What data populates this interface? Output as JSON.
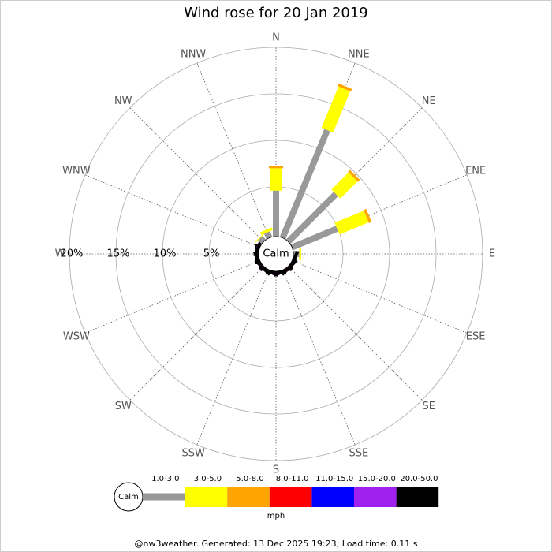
{
  "chart_data": {
    "type": "windrose",
    "title": "Wind rose for 20 Jan 2019",
    "directions": [
      "N",
      "NNE",
      "NE",
      "ENE",
      "E",
      "ESE",
      "SE",
      "SSE",
      "S",
      "SSW",
      "SW",
      "WSW",
      "W",
      "WNW",
      "NW",
      "NNW"
    ],
    "rlim": [
      0,
      20
    ],
    "rticks": [
      {
        "value": 5,
        "label": "5%"
      },
      {
        "value": 10,
        "label": "10%"
      },
      {
        "value": 15,
        "label": "15%"
      },
      {
        "value": 20,
        "label": "20%"
      }
    ],
    "calm_label": "Calm",
    "unit": "mph",
    "series": [
      {
        "name": "1.0-3.0",
        "color": "#999999",
        "values": [
          4.6,
          12.2,
          6.9,
          4.9,
          0.3,
          0,
          0,
          0,
          0,
          0,
          0,
          0,
          0,
          0,
          0.2,
          0.3
        ]
      },
      {
        "name": "3.0-5.0",
        "color": "#ffff00",
        "values": [
          2.4,
          4.8,
          2.6,
          3.4,
          0.2,
          0,
          0,
          0,
          0,
          0,
          0,
          0,
          0,
          0,
          0.1,
          0.3
        ]
      },
      {
        "name": "5.0-8.0",
        "color": "#ffa500",
        "values": [
          0.2,
          0.3,
          0.3,
          0.3,
          0,
          0,
          0,
          0,
          0,
          0,
          0,
          0,
          0,
          0,
          0,
          0
        ]
      },
      {
        "name": "8.0-11.0",
        "color": "#ff0000",
        "values": [
          0,
          0,
          0,
          0,
          0,
          0,
          0,
          0,
          0,
          0,
          0,
          0,
          0,
          0,
          0,
          0
        ]
      },
      {
        "name": "11.0-15.0",
        "color": "#0000ff",
        "values": [
          0,
          0,
          0,
          0,
          0,
          0,
          0,
          0,
          0,
          0,
          0,
          0,
          0,
          0,
          0,
          0
        ]
      },
      {
        "name": "15.0-20.0",
        "color": "#a020f0",
        "values": [
          0,
          0,
          0,
          0,
          0,
          0,
          0,
          0,
          0,
          0,
          0,
          0,
          0,
          0,
          0,
          0
        ]
      },
      {
        "name": "20.0-50.0",
        "color": "#000000",
        "values": [
          0,
          0,
          0,
          0,
          0,
          0,
          0,
          0,
          0,
          0,
          0,
          0,
          0,
          0,
          0,
          0
        ]
      }
    ],
    "footer": "@nw3weather. Generated: 13 Dec 2025 19:23; Load time: 0.11 s"
  }
}
